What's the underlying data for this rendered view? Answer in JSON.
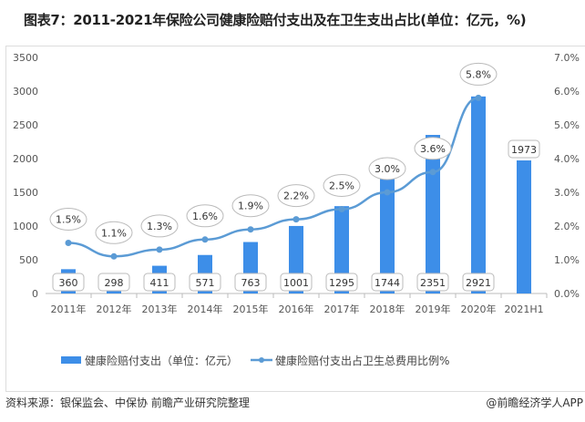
{
  "title": "图表7：2011-2021年保险公司健康险赔付支出及在卫生支出占比(单位：亿元，%)",
  "footer": {
    "source": "资料来源：银保监会、中保协 前瞻产业研究院整理",
    "brand": "@前瞻经济学人APP"
  },
  "colors": {
    "bar": "#3d8ee8",
    "line": "#5b9bd5"
  },
  "chart_data": {
    "type": "bar+line",
    "categories": [
      "2011年",
      "2012年",
      "2013年",
      "2014年",
      "2015年",
      "2016年",
      "2017年",
      "2018年",
      "2019年",
      "2020年",
      "2021H1"
    ],
    "series": [
      {
        "name": "健康险赔付支出（单位：亿元）",
        "type": "bar",
        "axis": "left",
        "values": [
          360,
          298,
          411,
          571,
          763,
          1001,
          1295,
          1744,
          2351,
          2921,
          1973
        ],
        "labels": [
          "360",
          "298",
          "411",
          "571",
          "763",
          "1001",
          "1295",
          "1744",
          "2351",
          "2921",
          "1973"
        ]
      },
      {
        "name": "健康险赔付支出占卫生总费用比例%",
        "type": "line",
        "axis": "right",
        "values": [
          1.5,
          1.1,
          1.3,
          1.6,
          1.9,
          2.2,
          2.5,
          3.0,
          3.6,
          5.8,
          null
        ],
        "labels": [
          "1.5%",
          "1.1%",
          "1.3%",
          "1.6%",
          "1.9%",
          "2.2%",
          "2.5%",
          "3.0%",
          "3.6%",
          "5.8%",
          ""
        ]
      }
    ],
    "y_left": {
      "range": [
        0,
        3500
      ],
      "ticks": [
        "0",
        "500",
        "1000",
        "1500",
        "2000",
        "2500",
        "3000",
        "3500"
      ]
    },
    "y_right": {
      "range": [
        0,
        7
      ],
      "ticks": [
        "0.0%",
        "1.0%",
        "2.0%",
        "3.0%",
        "4.0%",
        "5.0%",
        "6.0%",
        "7.0%"
      ]
    },
    "legend": "bottom",
    "grid": false
  }
}
